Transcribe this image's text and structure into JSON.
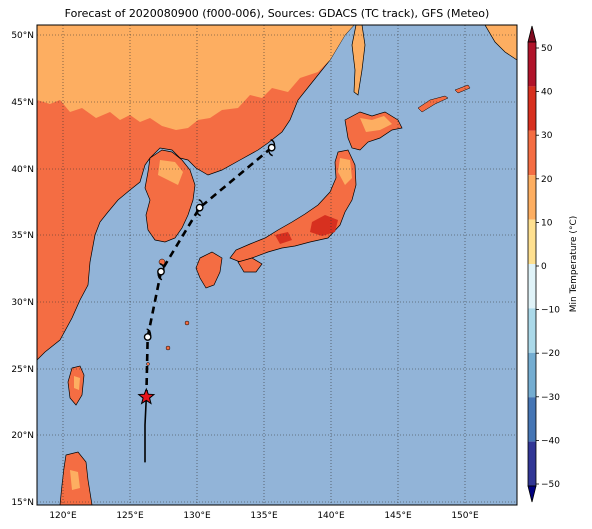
{
  "title": "Forecast of 2020080900 (f000-006), Sources: GDACS (TC track), GFS (Meteo)",
  "map": {
    "lon_range": [
      118,
      154
    ],
    "lat_range": [
      15,
      51
    ],
    "lon_ticks": [
      "120°E",
      "125°E",
      "130°E",
      "135°E",
      "140°E",
      "145°E",
      "150°E"
    ],
    "lat_ticks": [
      "15°N",
      "20°N",
      "25°N",
      "30°N",
      "35°N",
      "40°N",
      "45°N",
      "50°N"
    ],
    "ocean_color": "#92b4d8",
    "grid": "dotted"
  },
  "track": {
    "forecast_points": [
      {
        "lon": 126.2,
        "lat": 23.1,
        "symbol": "star-current-position"
      },
      {
        "lon": 126.3,
        "lat": 27.6,
        "symbol": "tropical-depression"
      },
      {
        "lon": 127.3,
        "lat": 32.5,
        "symbol": "typhoon"
      },
      {
        "lon": 130.2,
        "lat": 37.3,
        "symbol": "typhoon"
      },
      {
        "lon": 135.6,
        "lat": 41.8,
        "symbol": "typhoon"
      }
    ],
    "past_track": [
      [
        126.2,
        23.1
      ],
      [
        126.1,
        21.0
      ],
      [
        126.1,
        18.2
      ]
    ],
    "star_color": "#e8141b"
  },
  "colorbar": {
    "label": "Min Temperature (°C)",
    "ticks": [
      "50",
      "40",
      "30",
      "20",
      "10",
      "0",
      "−10",
      "−20",
      "−30",
      "−40",
      "−50"
    ],
    "colors": [
      "#7f0b20",
      "#b0132a",
      "#d7301f",
      "#f46d43",
      "#fdae61",
      "#fee090",
      "#e0f3f8",
      "#abd9e9",
      "#74add1",
      "#4575b4",
      "#313695"
    ]
  },
  "legend_colors": {
    "warm_20_30": "#f46d43",
    "mild_10_20": "#fdae61",
    "hot_30_40": "#d7301f",
    "coast": "#000000"
  }
}
